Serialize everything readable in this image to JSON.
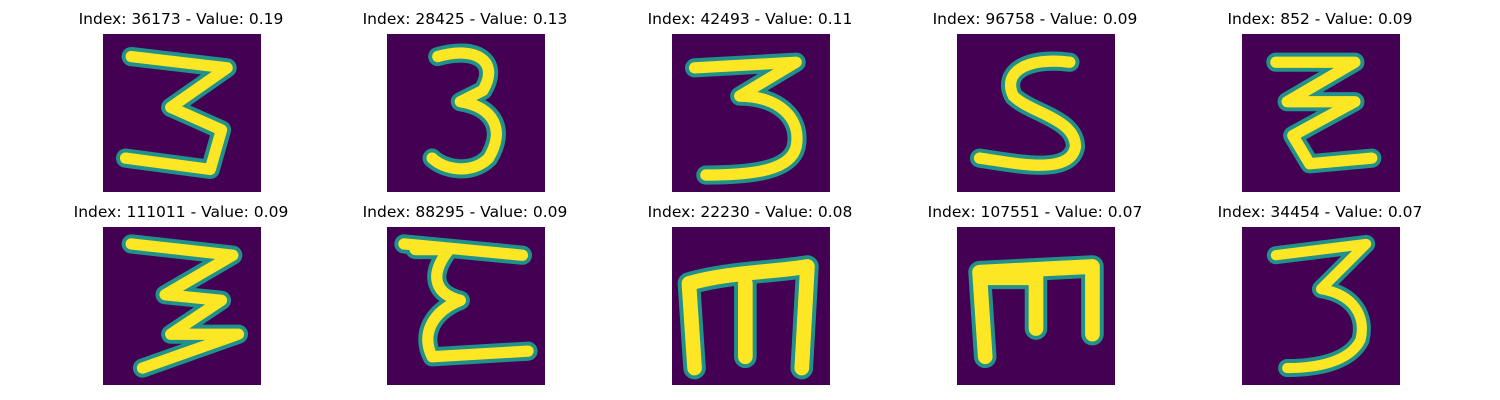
{
  "panels": [
    {
      "index": "36173",
      "value": "0.19",
      "title": "Index: 36173 - Value: 0.19"
    },
    {
      "index": "28425",
      "value": "0.13",
      "title": "Index: 28425 - Value: 0.13"
    },
    {
      "index": "42493",
      "value": "0.11",
      "title": "Index: 42493 - Value: 0.11"
    },
    {
      "index": "96758",
      "value": "0.09",
      "title": "Index: 96758 - Value: 0.09"
    },
    {
      "index": "852",
      "value": "0.09",
      "title": "Index: 852 - Value: 0.09"
    },
    {
      "index": "111011",
      "value": "0.09",
      "title": "Index: 111011 - Value: 0.09"
    },
    {
      "index": "88295",
      "value": "0.09",
      "title": "Index: 88295 - Value: 0.09"
    },
    {
      "index": "22230",
      "value": "0.08",
      "title": "Index: 22230 - Value: 0.08"
    },
    {
      "index": "107551",
      "value": "0.07",
      "title": "Index: 107551 - Value: 0.07"
    },
    {
      "index": "34454",
      "value": "0.07",
      "title": "Index: 34454 - Value: 0.07"
    }
  ],
  "colors": {
    "background": "#440154",
    "stroke_outer": "#21918c",
    "stroke_inner": "#fde725"
  }
}
